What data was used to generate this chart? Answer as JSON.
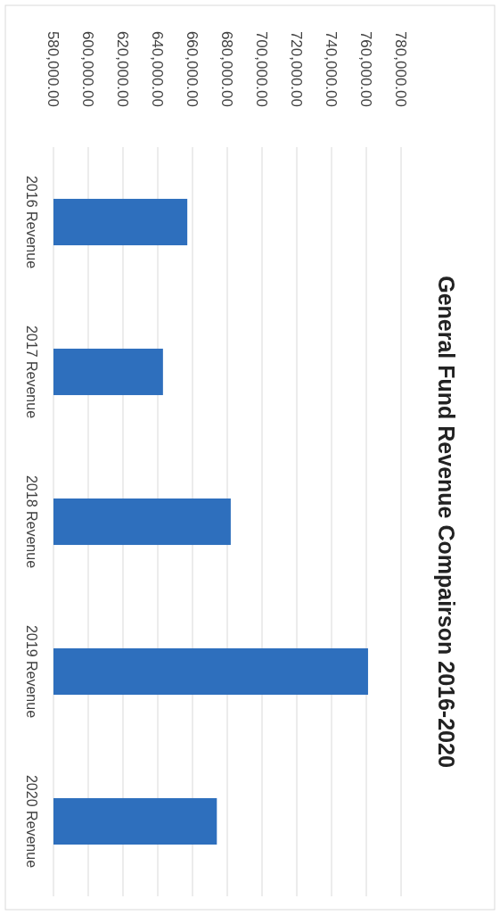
{
  "chart_data": {
    "type": "bar",
    "orientation": "horizontal",
    "title": "General Fund Revenue Compairson 2016-2020",
    "categories": [
      "2016 Revenue",
      "2017 Revenue",
      "2018 Revenue",
      "2019 Revenue",
      "2020 Revenue"
    ],
    "values": [
      657000,
      643000,
      682000,
      761000,
      674000
    ],
    "color": "#2e6fbd",
    "xlim": [
      580000,
      780000
    ],
    "xticks": [
      {
        "value": 580000,
        "label": "580,000.00"
      },
      {
        "value": 600000,
        "label": "600,000.00"
      },
      {
        "value": 620000,
        "label": "620,000.00"
      },
      {
        "value": 640000,
        "label": "640,000.00"
      },
      {
        "value": 660000,
        "label": "660,000.00"
      },
      {
        "value": 680000,
        "label": "680,000.00"
      },
      {
        "value": 700000,
        "label": "700,000.00"
      },
      {
        "value": 720000,
        "label": "720,000.00"
      },
      {
        "value": 740000,
        "label": "740,000.00"
      },
      {
        "value": 760000,
        "label": "760,000.00"
      },
      {
        "value": 780000,
        "label": "780,000.00"
      }
    ],
    "grid": "x"
  }
}
